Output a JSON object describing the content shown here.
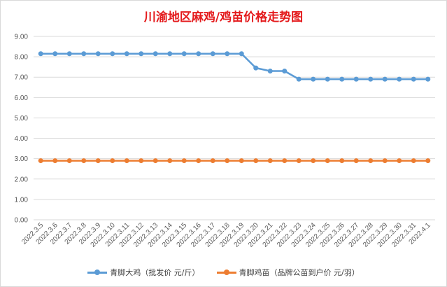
{
  "chart_data": {
    "type": "line",
    "title": "川渝地区麻鸡/鸡苗价格走势图",
    "xlabel": "",
    "ylabel": "",
    "ylim": [
      0,
      9
    ],
    "ytick_step": 1,
    "ytick_decimals": 2,
    "grid": true,
    "legend_position": "bottom",
    "categories": [
      "2022.3.5",
      "2022.3.6",
      "2022.3.7",
      "2022.3.8",
      "2022.3.9",
      "2022.3.10",
      "2022.3.11",
      "2022.3.12",
      "2022.3.13",
      "2022.3.14",
      "2022.3.15",
      "2022.3.16",
      "2022.3.17",
      "2022.3.18",
      "2022.3.19",
      "2022.3.20",
      "2022.3.21",
      "2022.3.22",
      "2022.3.23",
      "2022.3.24",
      "2022.3.25",
      "2022.3.26",
      "2022.3.27",
      "2022.3.28",
      "2022.3.29",
      "2022.3.30",
      "2022.3.31",
      "2022.4.1"
    ],
    "series": [
      {
        "name": "青脚大鸡（批发价 元/斤）",
        "color": "#5b9bd5",
        "values": [
          8.15,
          8.15,
          8.15,
          8.15,
          8.15,
          8.15,
          8.15,
          8.15,
          8.15,
          8.15,
          8.15,
          8.15,
          8.15,
          8.15,
          8.15,
          7.45,
          7.3,
          7.3,
          6.9,
          6.9,
          6.9,
          6.9,
          6.9,
          6.9,
          6.9,
          6.9,
          6.9,
          6.9
        ]
      },
      {
        "name": "青脚鸡苗（品牌公苗到户价 元/羽）",
        "color": "#ed7d31",
        "values": [
          2.9,
          2.9,
          2.9,
          2.9,
          2.9,
          2.9,
          2.9,
          2.9,
          2.9,
          2.9,
          2.9,
          2.9,
          2.9,
          2.9,
          2.9,
          2.9,
          2.9,
          2.9,
          2.9,
          2.9,
          2.9,
          2.9,
          2.9,
          2.9,
          2.9,
          2.9,
          2.9,
          2.9
        ]
      }
    ]
  }
}
